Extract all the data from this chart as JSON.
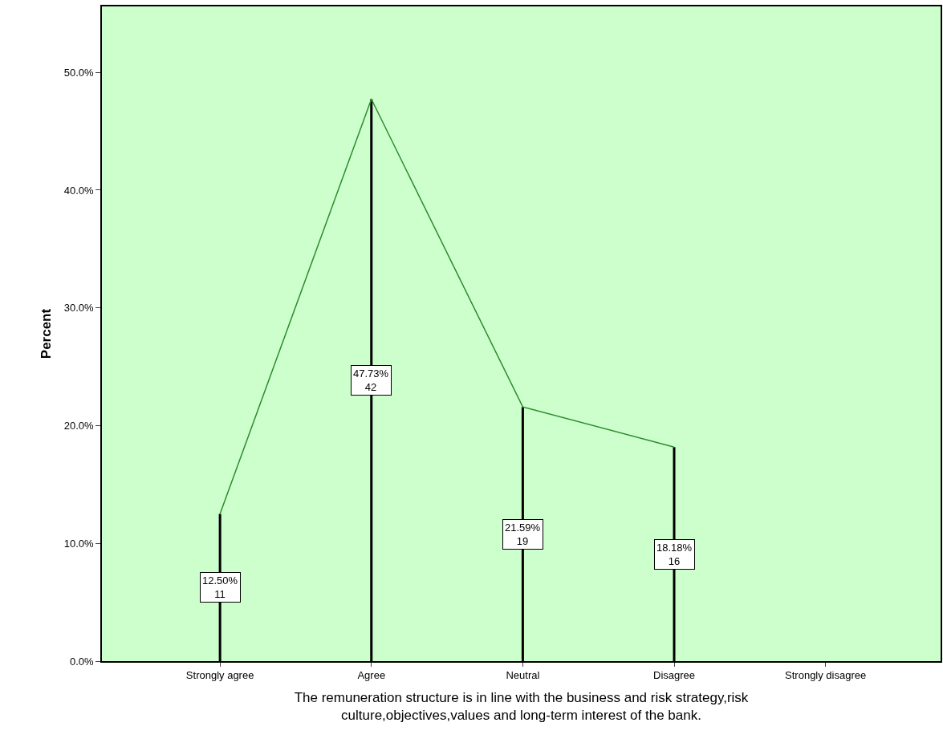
{
  "chart_data": {
    "type": "line",
    "xlabel": "The remuneration structure is in line with the business and risk strategy,risk\nculture,objectives,values and long-term interest of the bank.",
    "ylabel": "Percent",
    "categories": [
      "Strongly agree",
      "Agree",
      "Neutral",
      "Disagree",
      "Strongly disagree"
    ],
    "series": [
      {
        "color": "#2e8b2e",
        "values": [
          12.5,
          47.73,
          21.59,
          18.18,
          null
        ]
      },
      {
        "type": "bar",
        "color": "#000000",
        "values": [
          12.5,
          47.73,
          21.59,
          18.18,
          null
        ],
        "value_labels": [
          "12.50%\n11",
          "47.73%\n42",
          "21.59%\n19",
          "18.18%\n16",
          null
        ]
      }
    ],
    "ylim": [
      0,
      55.6
    ],
    "yticks": [
      {
        "value": 0,
        "label": "0.0%"
      },
      {
        "value": 10,
        "label": "10.0%"
      },
      {
        "value": 20,
        "label": "20.0%"
      },
      {
        "value": 30,
        "label": "30.0%"
      },
      {
        "value": 40,
        "label": "40.0%"
      },
      {
        "value": 50,
        "label": "50.0%"
      }
    ],
    "marker": "none",
    "line_style": "solid"
  }
}
